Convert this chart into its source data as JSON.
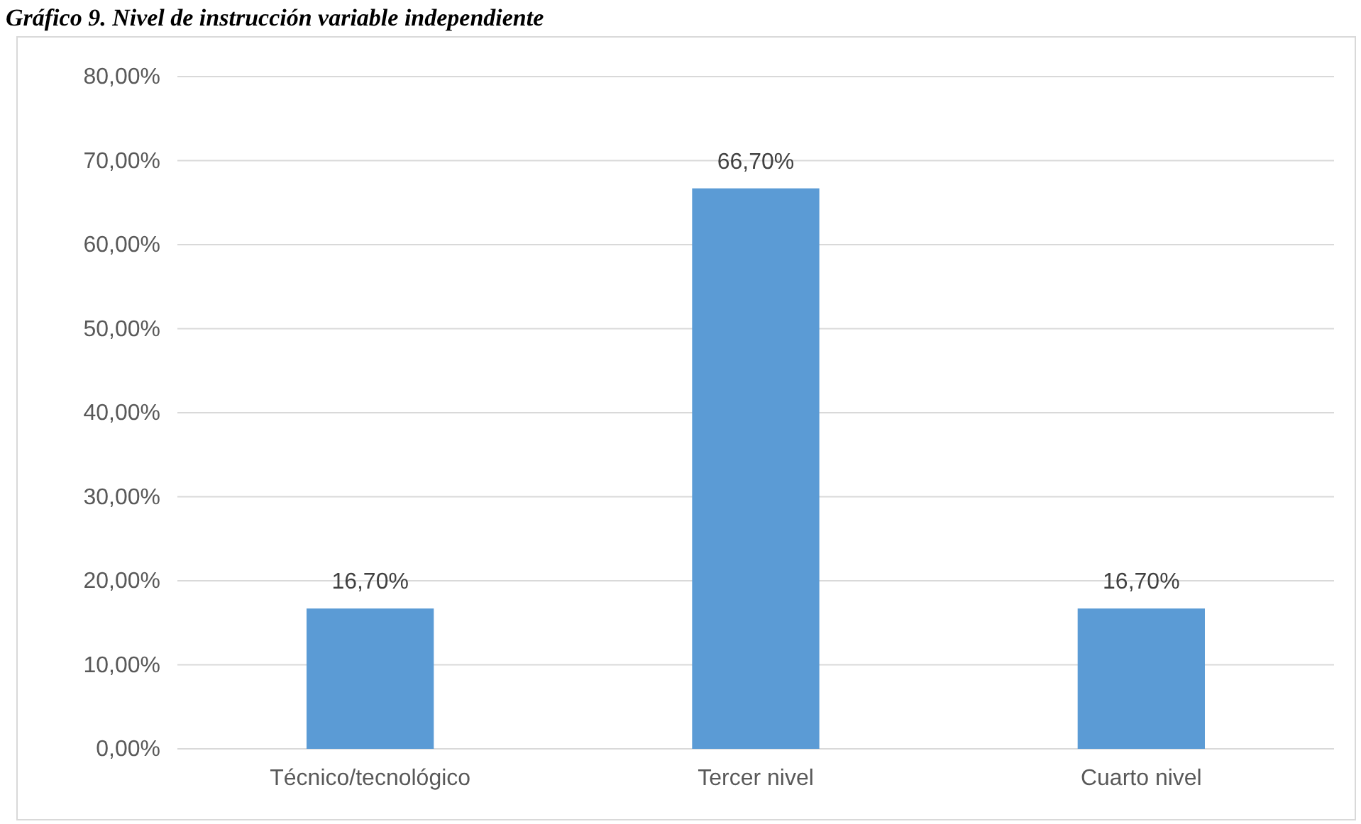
{
  "chart_data": {
    "type": "bar",
    "title": "Gráfico 9. Nivel de instrucción variable independiente",
    "categories": [
      "Técnico/tecnológico",
      "Tercer nivel",
      "Cuarto nivel"
    ],
    "values": [
      16.7,
      66.7,
      16.7
    ],
    "value_labels": [
      "16,70%",
      "66,70%",
      "16,70%"
    ],
    "color": "#5b9bd5",
    "ylim": [
      0,
      80
    ],
    "yticks": [
      {
        "value": 0,
        "label": "0,00%"
      },
      {
        "value": 10,
        "label": "10,00%"
      },
      {
        "value": 20,
        "label": "20,00%"
      },
      {
        "value": 30,
        "label": "30,00%"
      },
      {
        "value": 40,
        "label": "40,00%"
      },
      {
        "value": 50,
        "label": "50,00%"
      },
      {
        "value": 60,
        "label": "60,00%"
      },
      {
        "value": 70,
        "label": "70,00%"
      },
      {
        "value": 80,
        "label": "80,00%"
      }
    ],
    "grid": "y"
  }
}
